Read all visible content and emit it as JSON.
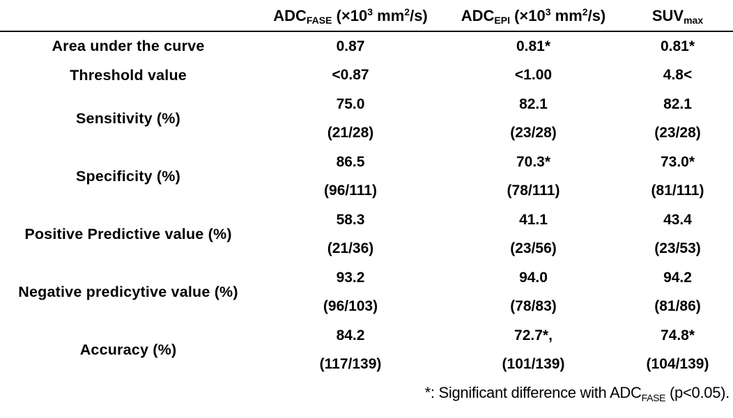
{
  "page": {
    "background_color": "#ffffff",
    "text_color": "#000000"
  },
  "table": {
    "columns": [
      {
        "name": "metric",
        "segments": []
      },
      {
        "name": "adc-fase",
        "segments": [
          {
            "t": "ADC"
          },
          {
            "t": "FASE",
            "s": "sub"
          },
          {
            "t": " (×10"
          },
          {
            "t": "3",
            "s": "sup"
          },
          {
            "t": " mm"
          },
          {
            "t": "2",
            "s": "sup"
          },
          {
            "t": "/s)"
          }
        ]
      },
      {
        "name": "adc-epi",
        "segments": [
          {
            "t": "ADC"
          },
          {
            "t": "EPI",
            "s": "sub"
          },
          {
            "t": " (×10"
          },
          {
            "t": "3",
            "s": "sup"
          },
          {
            "t": " mm"
          },
          {
            "t": "2",
            "s": "sup"
          },
          {
            "t": "/s)"
          }
        ]
      },
      {
        "name": "suv-max",
        "segments": [
          {
            "t": "SUV"
          },
          {
            "t": "max",
            "s": "sub"
          }
        ]
      }
    ],
    "rows": [
      {
        "label": "Area under the curve",
        "values": [
          [
            "0.87"
          ],
          [
            "0.81*"
          ],
          [
            "0.81*"
          ]
        ]
      },
      {
        "label": "Threshold value",
        "values": [
          [
            "<0.87"
          ],
          [
            "<1.00"
          ],
          [
            "4.8<"
          ]
        ]
      },
      {
        "label": "Sensitivity (%)",
        "values": [
          [
            "75.0",
            "(21/28)"
          ],
          [
            "82.1",
            "(23/28)"
          ],
          [
            "82.1",
            "(23/28)"
          ]
        ]
      },
      {
        "label": "Specificity (%)",
        "values": [
          [
            "86.5",
            "(96/111)"
          ],
          [
            "70.3*",
            "(78/111)"
          ],
          [
            "73.0*",
            "(81/111)"
          ]
        ]
      },
      {
        "label": "Positive Predictive value (%)",
        "values": [
          [
            "58.3",
            "(21/36)"
          ],
          [
            "41.1",
            "(23/56)"
          ],
          [
            "43.4",
            "(23/53)"
          ]
        ]
      },
      {
        "label": "Negative predicytive value (%)",
        "values": [
          [
            "93.2",
            "(96/103)"
          ],
          [
            "94.0",
            "(78/83)"
          ],
          [
            "94.2",
            "(81/86)"
          ]
        ]
      },
      {
        "label": "Accuracy (%)",
        "values": [
          [
            "84.2",
            "(117/139)"
          ],
          [
            "72.7*,",
            "(101/139)"
          ],
          [
            "74.8*",
            "(104/139)"
          ]
        ]
      }
    ]
  },
  "footnote": {
    "segments": [
      {
        "t": "*: Significant difference with ADC"
      },
      {
        "t": "FASE",
        "s": "sub"
      },
      {
        "t": " (p<0.05)."
      }
    ]
  }
}
